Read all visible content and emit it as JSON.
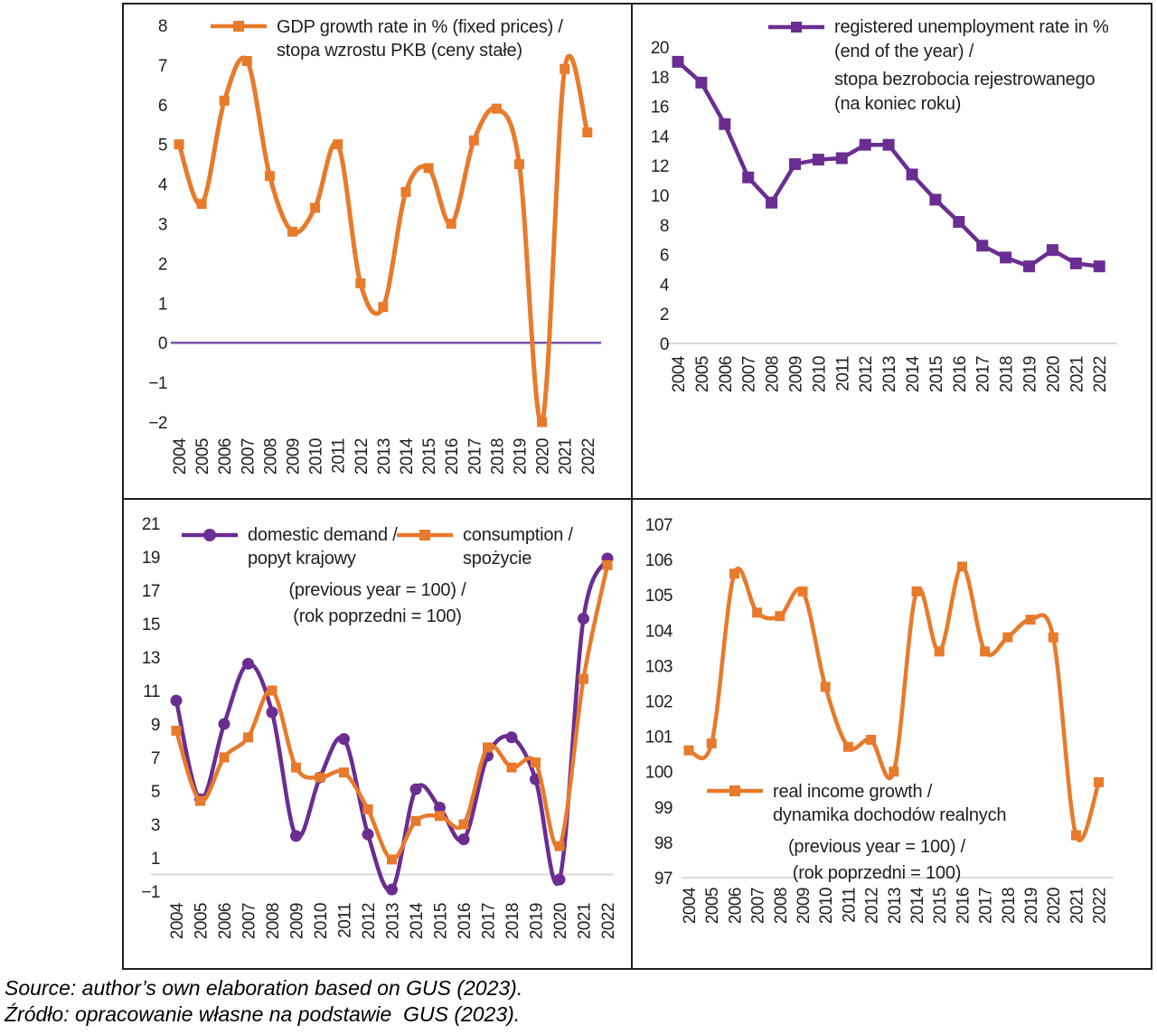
{
  "source": {
    "line1": "Source: author’s own elaboration based on GUS (2023).",
    "line2": "Źródło: opracowanie własne na podstawie  GUS (2023)."
  },
  "colors": {
    "orange": "#E87A2B",
    "purple": "#6A2D91",
    "zero_purple": "#7A52A8",
    "axis_gray": "#D9D9D9",
    "text": "#1F1F1F",
    "border": "#1F1F1F"
  },
  "chart_data": [
    {
      "id": "gdp",
      "type": "line",
      "legend": [
        "GDP growth rate in % (fixed prices) /",
        "stopa wzrostu PKB (ceny stałe)"
      ],
      "x": [
        "2004",
        "2005",
        "2006",
        "2007",
        "2008",
        "2009",
        "2010",
        "2011",
        "2012",
        "2013",
        "2014",
        "2015",
        "2016",
        "2017",
        "2018",
        "2019",
        "2020",
        "2021",
        "2022"
      ],
      "x_label_rotation_deg": -90,
      "ylim": [
        -2,
        8
      ],
      "yticks_values": [
        8,
        7,
        6,
        5,
        4,
        3,
        2,
        1,
        0,
        -1,
        -2
      ],
      "yticks_labels": [
        "8",
        "7",
        "6",
        "5",
        "4",
        "3",
        "2",
        "1",
        "0",
        "−1",
        "−2"
      ],
      "baseline": {
        "value": 0,
        "color_key": "zero_purple"
      },
      "legend_position": "top-left-inside",
      "series": [
        {
          "name": "GDP growth rate in % (fixed prices) / stopa wzrostu PKB (ceny stałe)",
          "color_key": "orange",
          "marker": "square",
          "smooth": true,
          "values": [
            5.0,
            3.5,
            6.1,
            7.1,
            4.2,
            2.8,
            3.4,
            5.0,
            1.5,
            0.9,
            3.8,
            4.4,
            3.0,
            5.1,
            5.9,
            4.5,
            -2.0,
            6.9,
            5.3
          ]
        }
      ]
    },
    {
      "id": "unemployment",
      "type": "line",
      "legend": [
        "registered unemployment rate in %",
        "(end of the year) /",
        "stopa bezrobocia rejestrowanego",
        "(na koniec roku)"
      ],
      "x": [
        "2004",
        "2005",
        "2006",
        "2007",
        "2008",
        "2009",
        "2010",
        "2011",
        "2012",
        "2013",
        "2014",
        "2015",
        "2016",
        "2017",
        "2018",
        "2019",
        "2020",
        "2021",
        "2022"
      ],
      "x_label_rotation_deg": -90,
      "ylim": [
        0,
        20
      ],
      "yticks_values": [
        20,
        18,
        16,
        14,
        12,
        10,
        8,
        6,
        4,
        2,
        0
      ],
      "yticks_labels": [
        "20",
        "18",
        "16",
        "14",
        "12",
        "10",
        "8",
        "6",
        "4",
        "2",
        "0"
      ],
      "baseline": {
        "value": 0,
        "color_key": "axis_gray"
      },
      "legend_position": "top-center-inside",
      "series": [
        {
          "name": "registered unemployment rate in % (end of the year) / stopa bezrobocia rejestrowanego (na koniec roku)",
          "color_key": "purple",
          "marker": "square",
          "smooth": false,
          "values": [
            19.0,
            17.6,
            14.8,
            11.2,
            9.5,
            12.1,
            12.4,
            12.5,
            13.4,
            13.4,
            11.4,
            9.7,
            8.2,
            6.6,
            5.8,
            5.2,
            6.3,
            5.4,
            5.2
          ]
        }
      ]
    },
    {
      "id": "demand",
      "type": "line",
      "legend1": [
        "domestic demand /",
        "popyt krajowy"
      ],
      "legend2": [
        "consumption /",
        "spożycie"
      ],
      "subtitle": [
        "(previous year = 100) /",
        "(rok poprzedni = 100)"
      ],
      "x": [
        "2004",
        "2005",
        "2006",
        "2007",
        "2008",
        "2009",
        "2010",
        "2011",
        "2012",
        "2013",
        "2014",
        "2015",
        "2016",
        "2017",
        "2018",
        "2019",
        "2020",
        "2021",
        "2022"
      ],
      "x_label_rotation_deg": -90,
      "ylim": [
        -1,
        21
      ],
      "yticks_values": [
        21,
        19,
        17,
        15,
        13,
        11,
        9,
        7,
        5,
        3,
        1,
        -1
      ],
      "yticks_labels": [
        "21",
        "19",
        "17",
        "15",
        "13",
        "11",
        "9",
        "7",
        "5",
        "3",
        "1",
        "−1"
      ],
      "baseline": {
        "value": 0,
        "color_key": "axis_gray"
      },
      "legend_position": "top-inside-two-entries",
      "series": [
        {
          "name": "domestic demand / popyt krajowy",
          "color_key": "purple",
          "marker": "circle",
          "smooth": true,
          "values": [
            10.4,
            4.5,
            9.0,
            12.6,
            9.7,
            2.3,
            5.8,
            8.1,
            2.4,
            -0.9,
            5.1,
            4.0,
            2.1,
            7.1,
            8.2,
            5.7,
            -0.3,
            15.3,
            18.9
          ]
        },
        {
          "name": "consumption / spożycie",
          "color_key": "orange",
          "marker": "square",
          "smooth": true,
          "values": [
            8.6,
            4.4,
            7.0,
            8.2,
            11.0,
            6.4,
            5.8,
            6.1,
            3.9,
            0.9,
            3.2,
            3.5,
            3.0,
            7.6,
            6.4,
            6.7,
            1.7,
            11.7,
            18.5
          ]
        }
      ]
    },
    {
      "id": "income",
      "type": "line",
      "legend": [
        "real income growth /",
        "dynamika dochodów realnych"
      ],
      "subtitle": [
        "(previous year = 100) /",
        "(rok poprzedni = 100)"
      ],
      "x": [
        "2004",
        "2005",
        "2006",
        "2007",
        "2008",
        "2009",
        "2010",
        "2011",
        "2012",
        "2013",
        "2014",
        "2015",
        "2016",
        "2017",
        "2018",
        "2019",
        "2020",
        "2021",
        "2022"
      ],
      "x_label_rotation_deg": -90,
      "ylim": [
        97,
        107
      ],
      "yticks_values": [
        107,
        106,
        105,
        104,
        103,
        102,
        101,
        100,
        99,
        98,
        97
      ],
      "yticks_labels": [
        "107",
        "106",
        "105",
        "104",
        "103",
        "102",
        "101",
        "100",
        "99",
        "98",
        "97"
      ],
      "baseline": {
        "value": 97,
        "color_key": "axis_gray"
      },
      "legend_position": "bottom-left-inside",
      "series": [
        {
          "name": "real income growth / dynamika dochodów realnych",
          "color_key": "orange",
          "marker": "square",
          "smooth": true,
          "values": [
            100.6,
            100.8,
            105.6,
            104.5,
            104.4,
            105.1,
            102.4,
            100.7,
            100.9,
            100.0,
            105.1,
            103.4,
            105.8,
            103.4,
            103.8,
            104.3,
            103.8,
            98.2,
            99.7
          ]
        }
      ]
    }
  ]
}
